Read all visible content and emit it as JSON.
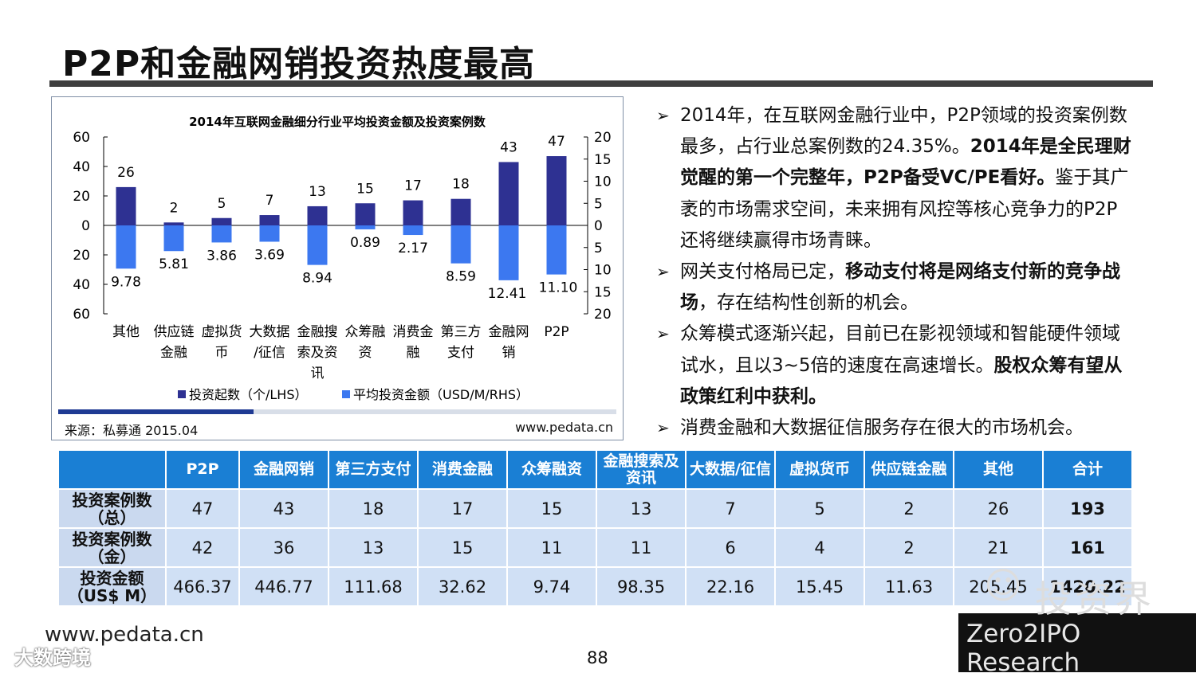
{
  "slide": {
    "title": "P2P和金融网销投资热度最高",
    "page_number": "88",
    "footer_url": "www.pedata.cn",
    "footer_watermark": "大数跨境",
    "logo_cn": "投资界",
    "logo_en": "Zero2IPO Research",
    "accent_color": "#1a7fd4"
  },
  "chart_source": {
    "left": "来源：私募通 2015.04",
    "right": "www.pedata.cn"
  },
  "chart_data": {
    "type": "bar",
    "title": "2014年互联网金融细分行业平均投资金额及投资案例数",
    "categories": [
      "其他",
      "供应链金融",
      "虚拟货币",
      "大数据/征信",
      "金融搜索及资讯",
      "众筹融资",
      "消费金融",
      "第三方支付",
      "金融网销",
      "P2P"
    ],
    "category_lines": [
      [
        "其他"
      ],
      [
        "供应链",
        "金融"
      ],
      [
        "虚拟货",
        "币"
      ],
      [
        "大数据",
        "/征信"
      ],
      [
        "金融搜",
        "索及资",
        "讯"
      ],
      [
        "众筹融",
        "资"
      ],
      [
        "消费金",
        "融"
      ],
      [
        "第三方",
        "支付"
      ],
      [
        "金融网",
        "销"
      ],
      [
        "P2P"
      ]
    ],
    "series": [
      {
        "name": "投资起数（个/LHS）",
        "axis": "left",
        "direction": "up",
        "color": "#2e3192",
        "values": [
          26,
          2,
          5,
          7,
          13,
          15,
          17,
          18,
          43,
          47
        ],
        "labels": [
          "26",
          "2",
          "5",
          "7",
          "13",
          "15",
          "17",
          "18",
          "43",
          "47"
        ]
      },
      {
        "name": "平均投资金额（USD/M/RHS）",
        "axis": "right",
        "direction": "down",
        "color": "#3c78f0",
        "values": [
          9.78,
          5.81,
          3.86,
          3.69,
          8.94,
          0.89,
          2.17,
          8.59,
          12.41,
          11.1
        ],
        "labels": [
          "9.78",
          "5.81",
          "3.86",
          "3.69",
          "8.94",
          "0.89",
          "2.17",
          "8.59",
          "12.41",
          "11.10"
        ]
      }
    ],
    "left_axis": {
      "ticks": [
        "60",
        "40",
        "20",
        "0",
        "20",
        "40",
        "60"
      ],
      "max": 60
    },
    "right_axis": {
      "ticks": [
        "20",
        "15",
        "10",
        "5",
        "0",
        "5",
        "10",
        "15",
        "20"
      ],
      "max": 20
    },
    "legend_position": "bottom",
    "grid": false
  },
  "bullets": [
    {
      "segments": [
        {
          "t": "2014年，在互联网金融行业中，P2P领域的投资案例数最多，占行业总案例数的24.35%。",
          "b": false
        },
        {
          "t": "2014年是全民理财觉醒的第一个完整年，P2P备受VC/PE看好。",
          "b": true
        },
        {
          "t": "鉴于其广袤的市场需求空间，未来拥有风控等核心竞争力的P2P还将继续赢得市场青睐。",
          "b": false
        }
      ]
    },
    {
      "segments": [
        {
          "t": "网关支付格局已定，",
          "b": false
        },
        {
          "t": "移动支付将是网络支付新的竞争战场",
          "b": true
        },
        {
          "t": "，存在结构性创新的机会。",
          "b": false
        }
      ]
    },
    {
      "segments": [
        {
          "t": "众筹模式逐渐兴起，目前已在影视领域和智能硬件领域试水，且以3~5倍的速度在高速增长。",
          "b": false
        },
        {
          "t": "股权众筹有望从政策红利中获利。",
          "b": true
        }
      ]
    },
    {
      "segments": [
        {
          "t": "消费金融和大数据征信服务存在很大的市场机会。",
          "b": false
        }
      ]
    }
  ],
  "table": {
    "headers": [
      "",
      "P2P",
      "金融网销",
      "第三方支付",
      "消费金融",
      "众筹融资",
      "金融搜索及资讯",
      "大数据/征信",
      "虚拟货币",
      "供应链金融",
      "其他",
      "合计"
    ],
    "rows": [
      {
        "label": "投资案例数（总）",
        "cells": [
          "47",
          "43",
          "18",
          "17",
          "15",
          "13",
          "7",
          "5",
          "2",
          "26",
          "193"
        ]
      },
      {
        "label": "投资案例数（金）",
        "cells": [
          "42",
          "36",
          "13",
          "15",
          "11",
          "11",
          "6",
          "4",
          "2",
          "21",
          "161"
        ]
      },
      {
        "label": "投资金额（US$ M）",
        "cells": [
          "466.37",
          "446.77",
          "111.68",
          "32.62",
          "9.74",
          "98.35",
          "22.16",
          "15.45",
          "11.63",
          "205.45",
          "1420.22"
        ]
      }
    ]
  }
}
